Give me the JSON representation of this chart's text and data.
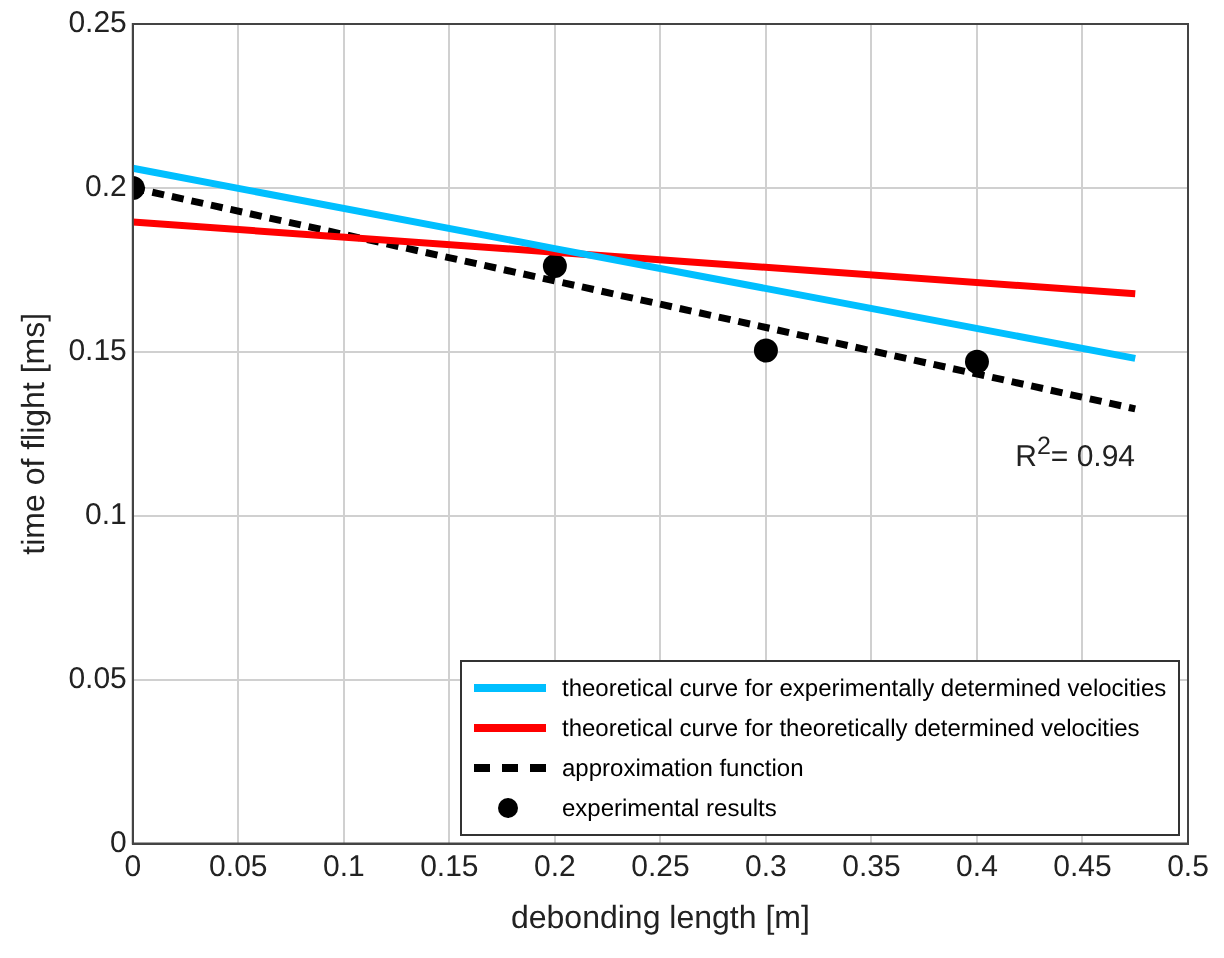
{
  "chart_data": {
    "type": "line",
    "xlabel": "debonding length [m]",
    "ylabel": "time of flight [ms]",
    "xlim": [
      0,
      0.5
    ],
    "xticks": [
      0,
      0.05,
      0.1,
      0.15,
      0.2,
      0.25,
      0.3,
      0.35,
      0.4,
      0.45,
      0.5
    ],
    "ylim": [
      0,
      0.25
    ],
    "yticks": [
      0,
      0.05,
      0.1,
      0.15,
      0.2,
      0.25
    ],
    "series": [
      {
        "name": "theoretical curve for experimentally determined velocities",
        "color": "#00bfff",
        "x": [
          0,
          0.2,
          0.475
        ],
        "values": [
          0.206,
          0.1815,
          0.148
        ],
        "line_style": "solid",
        "marker": "none"
      },
      {
        "name": "theoretical curve for theoretically determined velocities",
        "color": "#ff0000",
        "x": [
          0,
          0.2,
          0.475
        ],
        "values": [
          0.1896,
          0.1804,
          0.1677
        ],
        "line_style": "solid",
        "marker": "none"
      },
      {
        "name": "approximation function",
        "color": "#000000",
        "x": [
          0,
          0.475
        ],
        "values": [
          0.2,
          0.1326
        ],
        "line_style": "dashed",
        "marker": "none"
      },
      {
        "name": "experimental results",
        "type": "scatter",
        "color": "#000000",
        "x": [
          0,
          0.2,
          0.3,
          0.4
        ],
        "values": [
          0.2,
          0.1762,
          0.1504,
          0.147
        ],
        "marker": "circle"
      }
    ],
    "annotations": [
      "R$^{2}$= 0.94"
    ],
    "grid": true,
    "legend": "bottom right"
  }
}
